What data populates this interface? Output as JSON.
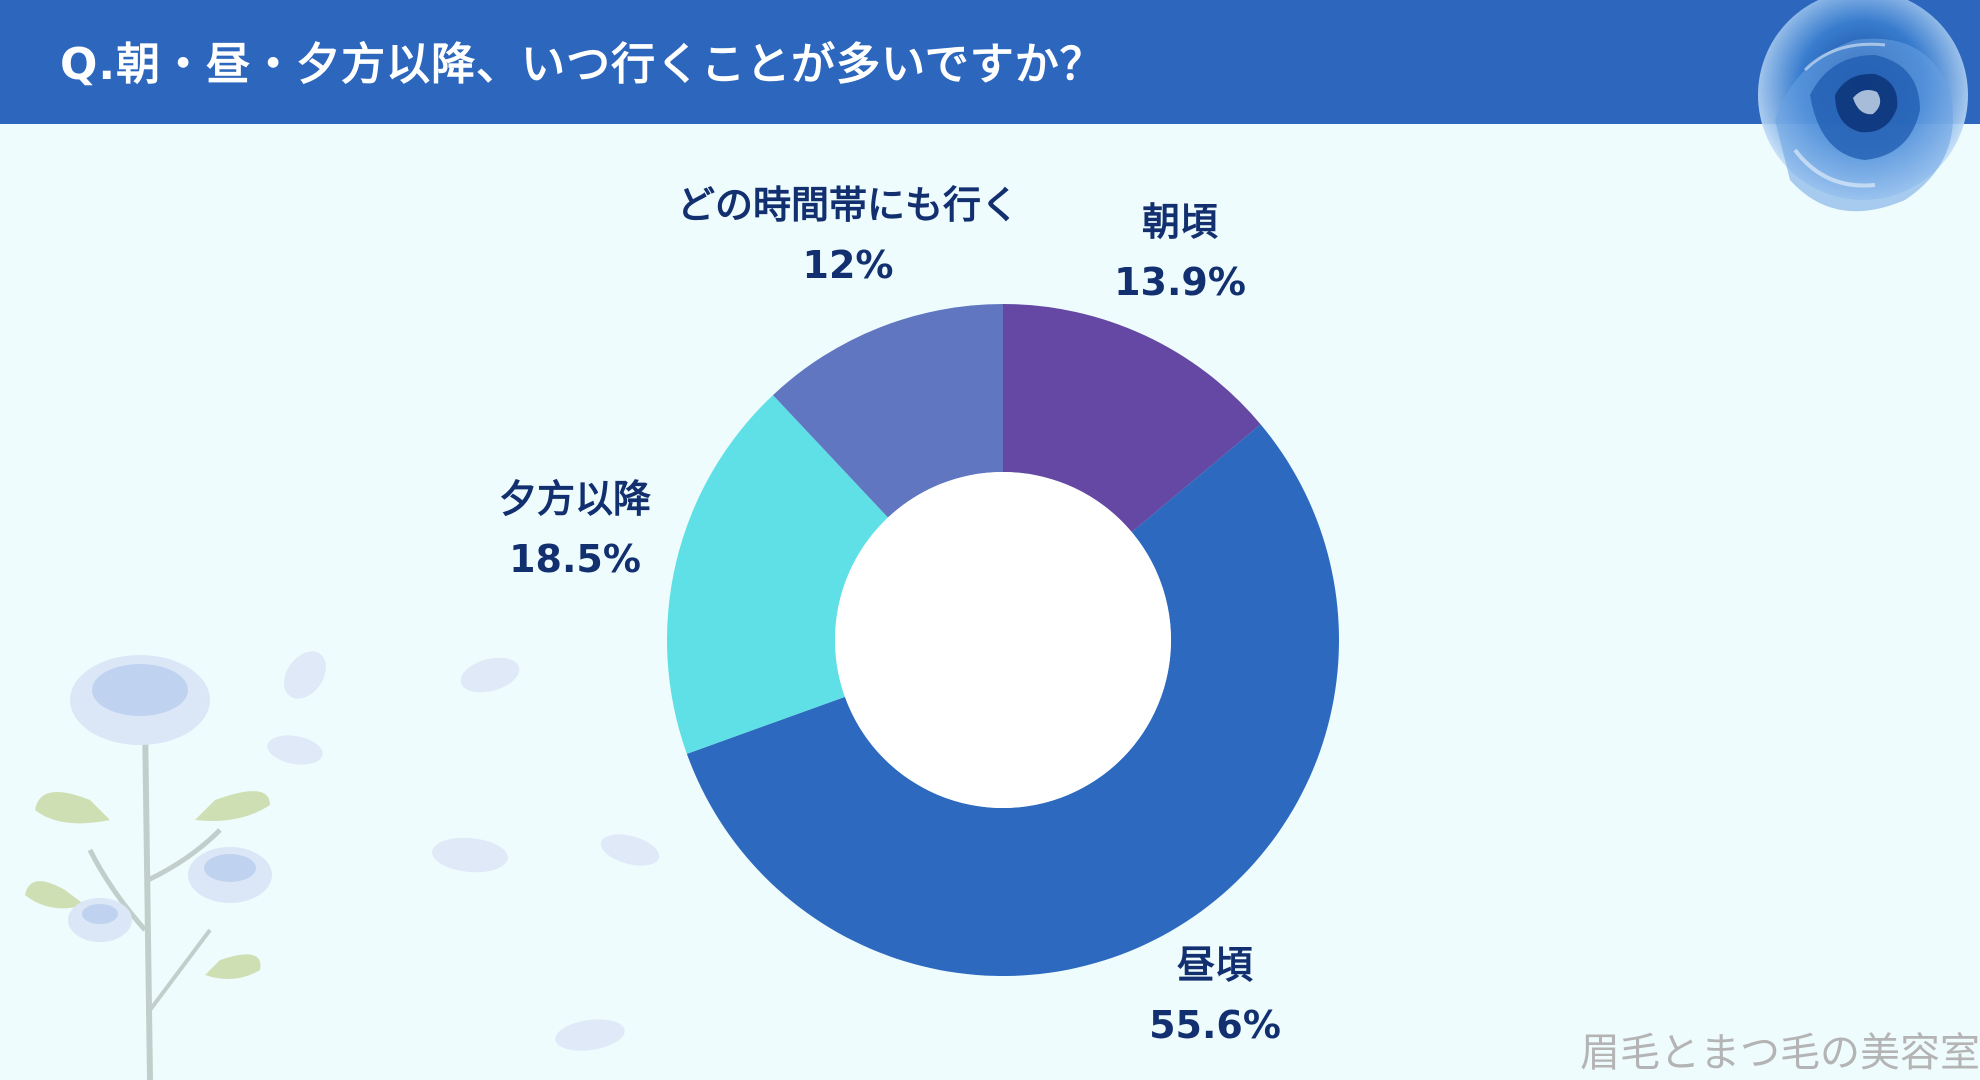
{
  "header": {
    "title": "Q.朝・昼・夕方以降、いつ行くことが多いですか？",
    "background_color": "#2c66bd"
  },
  "chart_data": {
    "type": "pie",
    "variant": "donut",
    "title": "",
    "slices": [
      {
        "label": "朝頃",
        "value": 13.9,
        "display": "13.9%",
        "color": "#6548a4"
      },
      {
        "label": "昼頃",
        "value": 55.6,
        "display": "55.6%",
        "color": "#2d6abf"
      },
      {
        "label": "夕方以降",
        "value": 18.5,
        "display": "18.5%",
        "color": "#5fe0e6"
      },
      {
        "label": "どの時間帯にも行く",
        "value": 12,
        "display": "12%",
        "color": "#6076c0"
      }
    ],
    "label_color": "#12306f",
    "legend": "none"
  },
  "decorations": {
    "top_right": "blue-rose",
    "bottom_left": "blue-rose-branch-with-petals"
  },
  "watermark": "眉毛とまつ毛の美容室"
}
